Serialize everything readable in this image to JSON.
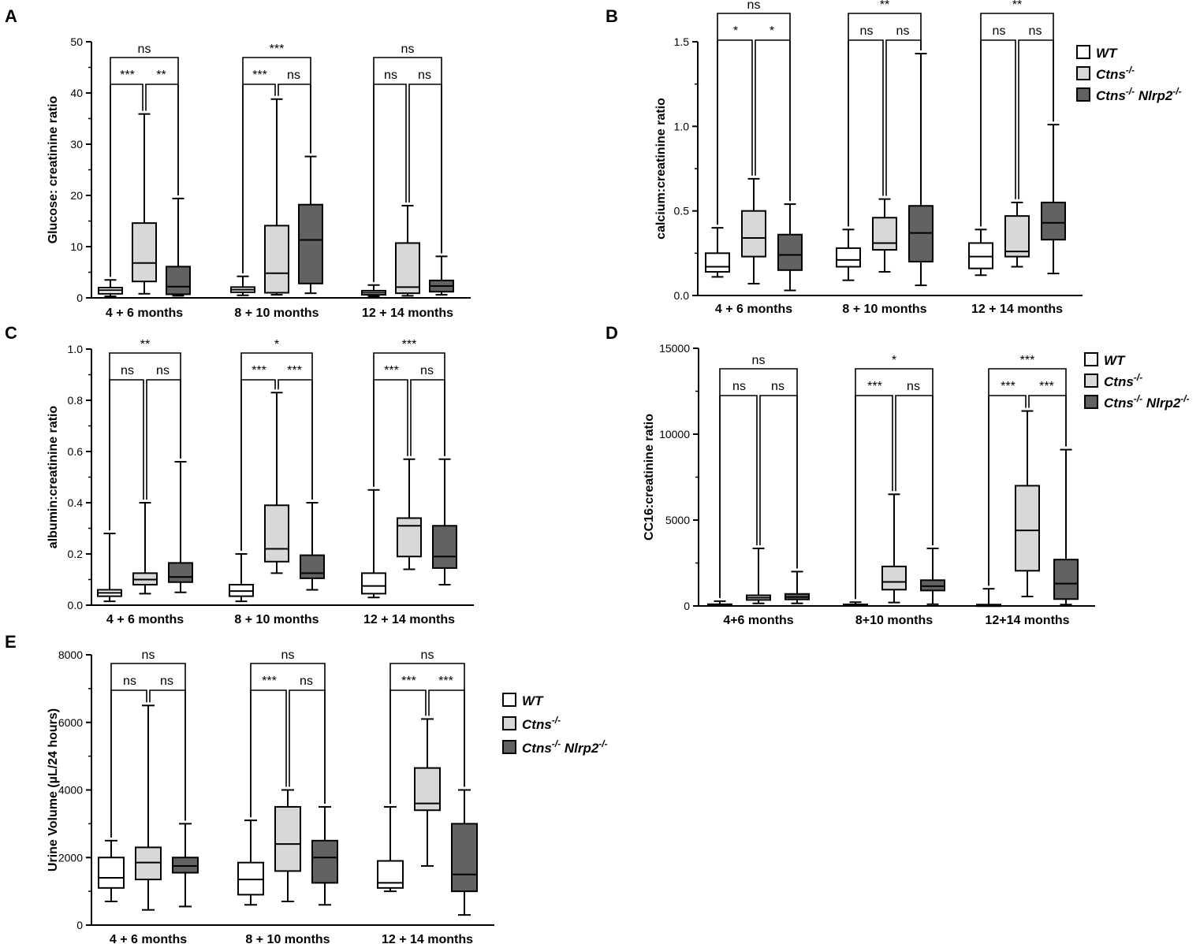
{
  "colors": {
    "WT": "#ffffff",
    "Ctns": "#d8d8d8",
    "CtnsNlrp2": "#626262",
    "stroke": "#000000"
  },
  "chart_data": [
    {
      "panel": "A",
      "type": "box",
      "ylabel": "Glucose: creatinine ratio",
      "ylim": [
        0,
        50
      ],
      "yticks": [
        0,
        10,
        20,
        30,
        40,
        50
      ],
      "tick_labels": [
        "0",
        "10",
        "20",
        "30",
        "40",
        "50"
      ],
      "categories": [
        "4 + 6 months",
        "8 + 10 months",
        "12 + 14 months"
      ],
      "series": [
        {
          "name": "WT",
          "boxes": [
            {
              "min": 0.3,
              "q1": 0.8,
              "median": 1.5,
              "q3": 2.0,
              "max": 3.5
            },
            {
              "min": 0.5,
              "q1": 1.1,
              "median": 1.6,
              "q3": 2.1,
              "max": 4.2
            },
            {
              "min": 0.3,
              "q1": 0.6,
              "median": 1.0,
              "q3": 1.4,
              "max": 2.5
            }
          ]
        },
        {
          "name": "Ctns-/-",
          "boxes": [
            {
              "min": 0.8,
              "q1": 3.2,
              "median": 6.8,
              "q3": 14.6,
              "max": 35.9
            },
            {
              "min": 0.6,
              "q1": 1.0,
              "median": 4.8,
              "q3": 14.1,
              "max": 38.8
            },
            {
              "min": 0.4,
              "q1": 0.9,
              "median": 2.1,
              "q3": 10.7,
              "max": 18.0
            }
          ]
        },
        {
          "name": "Ctns-/- Nlrp2-/-",
          "boxes": [
            {
              "min": 0.4,
              "q1": 0.7,
              "median": 2.2,
              "q3": 6.1,
              "max": 19.4
            },
            {
              "min": 0.9,
              "q1": 2.8,
              "median": 11.3,
              "q3": 18.2,
              "max": 27.6
            },
            {
              "min": 0.6,
              "q1": 1.2,
              "median": 2.3,
              "q3": 3.4,
              "max": 8.1
            }
          ]
        }
      ],
      "significance": [
        {
          "group": 0,
          "top": "ns",
          "left": "***",
          "right": "**"
        },
        {
          "group": 1,
          "top": "***",
          "left": "***",
          "right": "ns"
        },
        {
          "group": 2,
          "top": "ns",
          "left": "ns",
          "right": "ns"
        }
      ]
    },
    {
      "panel": "B",
      "type": "box",
      "ylabel": "calcium:creatinine ratio",
      "ylim": [
        0,
        1.5
      ],
      "yticks": [
        0,
        0.5,
        1.0,
        1.5
      ],
      "tick_labels": [
        "0.0",
        "0.5",
        "1.0",
        "1.5"
      ],
      "categories": [
        "4 + 6 months",
        "8 + 10 months",
        "12 + 14 months"
      ],
      "series": [
        {
          "name": "WT",
          "boxes": [
            {
              "min": 0.11,
              "q1": 0.14,
              "median": 0.17,
              "q3": 0.25,
              "max": 0.4
            },
            {
              "min": 0.09,
              "q1": 0.17,
              "median": 0.21,
              "q3": 0.28,
              "max": 0.39
            },
            {
              "min": 0.12,
              "q1": 0.16,
              "median": 0.23,
              "q3": 0.31,
              "max": 0.39
            }
          ]
        },
        {
          "name": "Ctns-/-",
          "boxes": [
            {
              "min": 0.07,
              "q1": 0.23,
              "median": 0.34,
              "q3": 0.5,
              "max": 0.69
            },
            {
              "min": 0.14,
              "q1": 0.27,
              "median": 0.31,
              "q3": 0.46,
              "max": 0.57
            },
            {
              "min": 0.17,
              "q1": 0.23,
              "median": 0.26,
              "q3": 0.47,
              "max": 0.55
            }
          ]
        },
        {
          "name": "Ctns-/- Nlrp2-/-",
          "boxes": [
            {
              "min": 0.03,
              "q1": 0.15,
              "median": 0.24,
              "q3": 0.36,
              "max": 0.54
            },
            {
              "min": 0.06,
              "q1": 0.2,
              "median": 0.37,
              "q3": 0.53,
              "max": 1.43
            },
            {
              "min": 0.13,
              "q1": 0.33,
              "median": 0.43,
              "q3": 0.55,
              "max": 1.01
            }
          ]
        }
      ],
      "significance": [
        {
          "group": 0,
          "top": "ns",
          "left": "*",
          "right": "*"
        },
        {
          "group": 1,
          "top": "**",
          "left": "ns",
          "right": "ns"
        },
        {
          "group": 2,
          "top": "**",
          "left": "ns",
          "right": "ns"
        }
      ]
    },
    {
      "panel": "C",
      "type": "box",
      "ylabel": "albumin:creatinine ratio",
      "ylim": [
        0,
        1.0
      ],
      "yticks": [
        0,
        0.2,
        0.4,
        0.6,
        0.8,
        1.0
      ],
      "tick_labels": [
        "0.0",
        "0.2",
        "0.4",
        "0.6",
        "0.8",
        "1.0"
      ],
      "categories": [
        "4 + 6 months",
        "8 + 10 months",
        "12 + 14 months"
      ],
      "series": [
        {
          "name": "WT",
          "boxes": [
            {
              "min": 0.015,
              "q1": 0.035,
              "median": 0.048,
              "q3": 0.06,
              "max": 0.28
            },
            {
              "min": 0.015,
              "q1": 0.035,
              "median": 0.055,
              "q3": 0.08,
              "max": 0.2
            },
            {
              "min": 0.03,
              "q1": 0.045,
              "median": 0.075,
              "q3": 0.125,
              "max": 0.45
            }
          ]
        },
        {
          "name": "Ctns-/-",
          "boxes": [
            {
              "min": 0.045,
              "q1": 0.08,
              "median": 0.1,
              "q3": 0.125,
              "max": 0.4
            },
            {
              "min": 0.125,
              "q1": 0.17,
              "median": 0.22,
              "q3": 0.39,
              "max": 0.83
            },
            {
              "min": 0.14,
              "q1": 0.19,
              "median": 0.31,
              "q3": 0.34,
              "max": 0.57
            }
          ]
        },
        {
          "name": "Ctns-/- Nlrp2-/-",
          "boxes": [
            {
              "min": 0.05,
              "q1": 0.09,
              "median": 0.11,
              "q3": 0.165,
              "max": 0.56
            },
            {
              "min": 0.06,
              "q1": 0.105,
              "median": 0.125,
              "q3": 0.195,
              "max": 0.4
            },
            {
              "min": 0.08,
              "q1": 0.145,
              "median": 0.19,
              "q3": 0.31,
              "max": 0.57
            }
          ]
        }
      ],
      "significance": [
        {
          "group": 0,
          "top": "**",
          "left": "ns",
          "right": "ns"
        },
        {
          "group": 1,
          "top": "*",
          "left": "***",
          "right": "***"
        },
        {
          "group": 2,
          "top": "***",
          "left": "***",
          "right": "ns"
        }
      ]
    },
    {
      "panel": "D",
      "type": "box",
      "ylabel": "CC16:creatinine ratio",
      "ylim": [
        0,
        15000
      ],
      "yticks": [
        0,
        5000,
        10000,
        15000
      ],
      "tick_labels": [
        "0",
        "5000",
        "10000",
        "15000"
      ],
      "categories": [
        "4+6 months",
        "8+10 months",
        "12+14 months"
      ],
      "series": [
        {
          "name": "WT",
          "boxes": [
            {
              "min": 10,
              "q1": 30,
              "median": 60,
              "q3": 100,
              "max": 280
            },
            {
              "min": 10,
              "q1": 30,
              "median": 60,
              "q3": 90,
              "max": 220
            },
            {
              "min": 5,
              "q1": 20,
              "median": 40,
              "q3": 80,
              "max": 1000
            }
          ]
        },
        {
          "name": "Ctns-/-",
          "boxes": [
            {
              "min": 150,
              "q1": 350,
              "median": 480,
              "q3": 620,
              "max": 3350
            },
            {
              "min": 200,
              "q1": 950,
              "median": 1400,
              "q3": 2300,
              "max": 6500
            },
            {
              "min": 550,
              "q1": 2050,
              "median": 4400,
              "q3": 7000,
              "max": 11350
            }
          ]
        },
        {
          "name": "Ctns-/- Nlrp2-/-",
          "boxes": [
            {
              "min": 150,
              "q1": 380,
              "median": 520,
              "q3": 700,
              "max": 2000
            },
            {
              "min": 100,
              "q1": 900,
              "median": 1150,
              "q3": 1500,
              "max": 3350
            },
            {
              "min": 80,
              "q1": 400,
              "median": 1300,
              "q3": 2700,
              "max": 9100
            }
          ]
        }
      ],
      "significance": [
        {
          "group": 0,
          "top": "ns",
          "left": "ns",
          "right": "ns"
        },
        {
          "group": 1,
          "top": "*",
          "left": "***",
          "right": "ns"
        },
        {
          "group": 2,
          "top": "***",
          "left": "***",
          "right": "***"
        }
      ]
    },
    {
      "panel": "E",
      "type": "box",
      "ylabel": "Urine Volume (µL/24 hours)",
      "ylim": [
        0,
        8000
      ],
      "yticks": [
        0,
        2000,
        4000,
        6000,
        8000
      ],
      "tick_labels": [
        "0",
        "2000",
        "4000",
        "6000",
        "8000"
      ],
      "categories": [
        "4 + 6 months",
        "8 + 10 months",
        "12 + 14 months"
      ],
      "series": [
        {
          "name": "WT",
          "boxes": [
            {
              "min": 700,
              "q1": 1100,
              "median": 1400,
              "q3": 2000,
              "max": 2500
            },
            {
              "min": 600,
              "q1": 900,
              "median": 1350,
              "q3": 1850,
              "max": 3100
            },
            {
              "min": 1000,
              "q1": 1100,
              "median": 1250,
              "q3": 1900,
              "max": 3500
            }
          ]
        },
        {
          "name": "Ctns-/-",
          "boxes": [
            {
              "min": 450,
              "q1": 1350,
              "median": 1850,
              "q3": 2300,
              "max": 6500
            },
            {
              "min": 700,
              "q1": 1600,
              "median": 2400,
              "q3": 3500,
              "max": 4000
            },
            {
              "min": 1750,
              "q1": 3400,
              "median": 3600,
              "q3": 4650,
              "max": 6100
            }
          ]
        },
        {
          "name": "Ctns-/- Nlrp2-/-",
          "boxes": [
            {
              "min": 550,
              "q1": 1550,
              "median": 1750,
              "q3": 2000,
              "max": 3000
            },
            {
              "min": 600,
              "q1": 1250,
              "median": 2000,
              "q3": 2500,
              "max": 3500
            },
            {
              "min": 300,
              "q1": 1000,
              "median": 1500,
              "q3": 3000,
              "max": 4000
            }
          ]
        }
      ],
      "significance": [
        {
          "group": 0,
          "top": "ns",
          "left": "ns",
          "right": "ns"
        },
        {
          "group": 1,
          "top": "ns",
          "left": "***",
          "right": "ns"
        },
        {
          "group": 2,
          "top": "ns",
          "left": "***",
          "right": "***"
        }
      ]
    }
  ],
  "legends": [
    {
      "entries": [
        {
          "base": "WT",
          "sup1": "",
          "mid": "",
          "sup2": ""
        },
        {
          "base": "Ctns",
          "sup1": "-/-",
          "mid": "",
          "sup2": ""
        },
        {
          "base": "Ctns",
          "sup1": "-/-",
          "mid": " Nlrp2",
          "sup2": "-/-"
        }
      ]
    },
    {
      "entries": [
        {
          "base": "WT",
          "sup1": "",
          "mid": "",
          "sup2": ""
        },
        {
          "base": "Ctns",
          "sup1": "-/-",
          "mid": "",
          "sup2": ""
        },
        {
          "base": "Ctns",
          "sup1": "-/-",
          "mid": " Nlrp2",
          "sup2": "-/-"
        }
      ]
    },
    {
      "entries": [
        {
          "base": "WT",
          "sup1": "",
          "mid": "",
          "sup2": ""
        },
        {
          "base": "Ctns",
          "sup1": "-/-",
          "mid": "",
          "sup2": ""
        },
        {
          "base": "Ctns",
          "sup1": "-/-",
          "mid": " Nlrp2",
          "sup2": "-/-"
        }
      ]
    }
  ]
}
